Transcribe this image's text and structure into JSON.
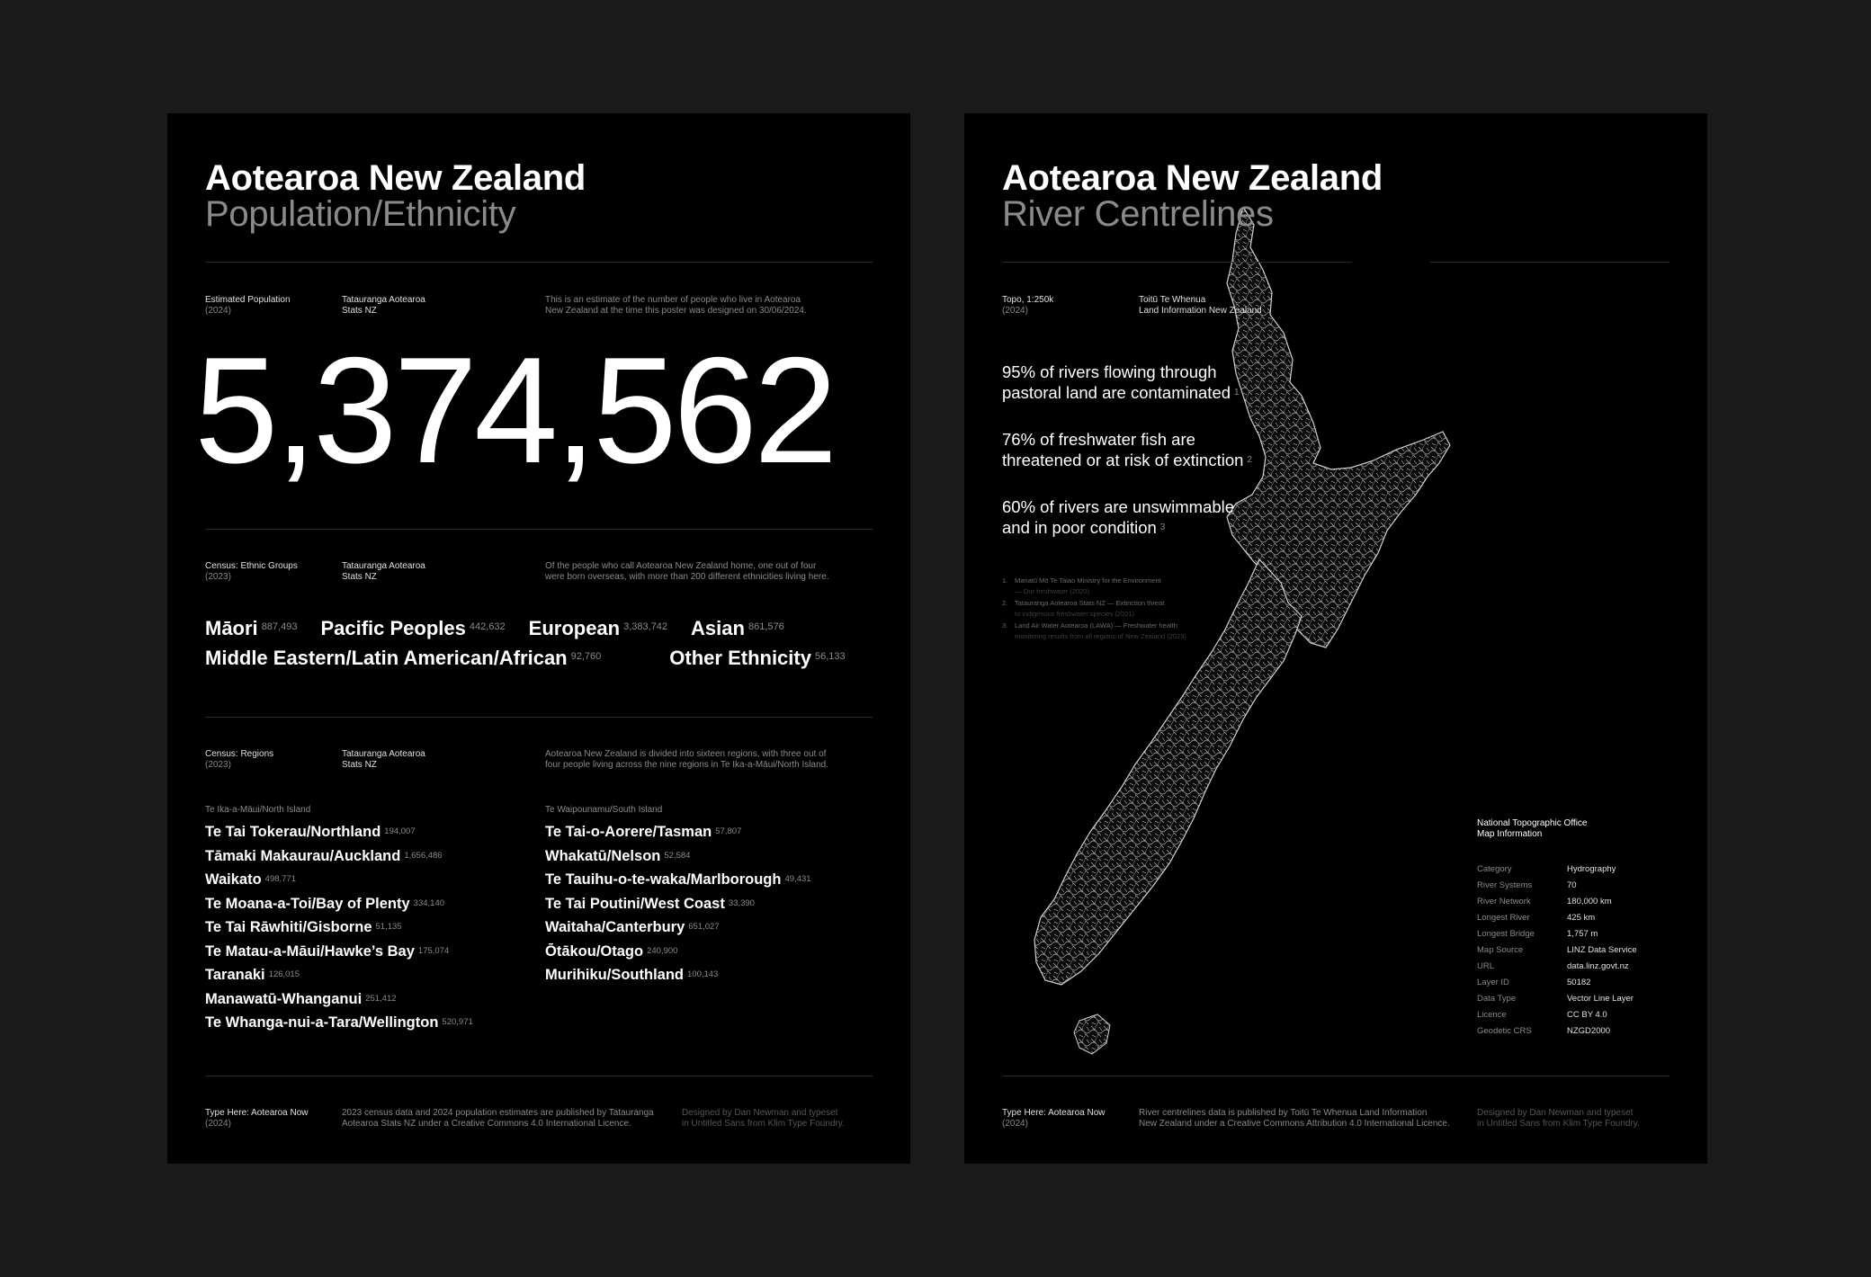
{
  "left": {
    "title": "Aotearoa New Zealand",
    "subtitle": "Population/Ethnicity",
    "population": {
      "label": "Estimated Population",
      "year": "(2024)",
      "source_1": "Tatauranga Aotearoa",
      "source_2": "Stats NZ",
      "note_1": "This is an estimate of the number of people who live in Aotearoa",
      "note_2": "New Zealand at the time this poster was designed on 30/06/2024.",
      "value": "5,374,562"
    },
    "ethnic": {
      "label": "Census: Ethnic Groups",
      "year": "(2023)",
      "source_1": "Tatauranga Aotearoa",
      "source_2": "Stats NZ",
      "note_1": "Of the people who call Aotearoa New Zealand home, one out of four",
      "note_2": "were born overseas, with more than 200 different ethnicities living here.",
      "line1": [
        {
          "name": "Māori",
          "count": "887,493"
        },
        {
          "name": "Pacific Peoples",
          "count": "442,632"
        },
        {
          "name": "European",
          "count": "3,383,742"
        },
        {
          "name": "Asian",
          "count": "861,576"
        }
      ],
      "line2": [
        {
          "name": "Middle Eastern/Latin American/African",
          "count": "92,760"
        },
        {
          "name": "Other Ethnicity",
          "count": "56,133"
        }
      ]
    },
    "regions": {
      "label": "Census: Regions",
      "year": "(2023)",
      "source_1": "Tatauranga Aotearoa",
      "source_2": "Stats NZ",
      "note_1": "Aotearoa New Zealand is divided into sixteen regions, with three out of",
      "note_2": "four people living across the nine regions in Te Ika-a-Māui/North Island.",
      "north_head": "Te Ika-a-Māui/North Island",
      "south_head": "Te Waipounamu/South Island",
      "north": [
        {
          "name": "Te Tai Tokerau/Northland",
          "count": "194,007"
        },
        {
          "name": "Tāmaki Makaurau/Auckland",
          "count": "1,656,486"
        },
        {
          "name": "Waikato",
          "count": "498,771"
        },
        {
          "name": "Te Moana-a-Toi/Bay of Plenty",
          "count": "334,140"
        },
        {
          "name": "Te Tai Rāwhiti/Gisborne",
          "count": "51,135"
        },
        {
          "name": "Te Matau-a-Māui/Hawke’s Bay",
          "count": "175,074"
        },
        {
          "name": "Taranaki",
          "count": "126,015"
        },
        {
          "name": "Manawatū-Whanganui",
          "count": "251,412"
        },
        {
          "name": "Te Whanga-nui-a-Tara/Wellington",
          "count": "520,971"
        }
      ],
      "south": [
        {
          "name": "Te Tai-o-Aorere/Tasman",
          "count": "57,807"
        },
        {
          "name": "Whakatū/Nelson",
          "count": "52,584"
        },
        {
          "name": "Te Tauihu-o-te-waka/Marlborough",
          "count": "49,431"
        },
        {
          "name": "Te Tai Poutini/West Coast",
          "count": "33,390"
        },
        {
          "name": "Waitaha/Canterbury",
          "count": "651,027"
        },
        {
          "name": "Ōtākou/Otago",
          "count": "240,900"
        },
        {
          "name": "Murihiku/Southland",
          "count": "100,143"
        }
      ]
    },
    "footer": {
      "label": "Type Here: Aotearoa Now",
      "year": "(2024)",
      "note_1": "2023 census data and 2024 population estimates are published by Tatauranga",
      "note_2": "Aotearoa Stats NZ under a Creative Commons 4.0 International Licence.",
      "credit_1": "Designed by Dan Newman and typeset",
      "credit_2": "in Untitled Sans from Klim Type Foundry."
    }
  },
  "right": {
    "title": "Aotearoa New Zealand",
    "subtitle": "River Centrelines",
    "topo": {
      "label": "Topo, 1:250k",
      "year": "(2024)",
      "source_1": "Toitū Te Whenua",
      "source_2": "Land Information New Zealand"
    },
    "stats": [
      {
        "line1": "95% of rivers flowing through",
        "line2": "pastoral land are contaminated",
        "ref": "1"
      },
      {
        "line1": "76% of freshwater fish are",
        "line2": "threatened or at risk of extinction",
        "ref": "2"
      },
      {
        "line1": "60% of rivers are unswimmable",
        "line2": "and in poor condition",
        "ref": "3"
      }
    ],
    "footnotes": [
      {
        "num": "1.",
        "line1": "Manatū Mō Te Taiao Ministry for the Environment",
        "line2": "— Our freshwater (2020)"
      },
      {
        "num": "2.",
        "line1": "Tatauranga Aotearoa Stats NZ — Extinction threat",
        "line2": "to indigenous freshwater species (2021)"
      },
      {
        "num": "3.",
        "line1": "Land Air Water Aotearoa (LAWA) — Freshwater health",
        "line2": "monitoring results from all regions of New Zealand (2023)"
      }
    ],
    "info": {
      "title_1": "National Topographic Office",
      "title_2": "Map Information",
      "rows": [
        {
          "k": "Category",
          "v": "Hydrography"
        },
        {
          "k": "River Systems",
          "v": "70"
        },
        {
          "k": "River Network",
          "v": "180,000 km"
        },
        {
          "k": "Longest River",
          "v": "425 km"
        },
        {
          "k": "Longest Bridge",
          "v": "1,757 m"
        },
        {
          "k": "Map Source",
          "v": "LINZ Data Service"
        },
        {
          "k": "URL",
          "v": "data.linz.govt.nz"
        },
        {
          "k": "Layer ID",
          "v": "50182"
        },
        {
          "k": "Data Type",
          "v": "Vector Line Layer"
        },
        {
          "k": "Licence",
          "v": "CC BY 4.0"
        },
        {
          "k": "Geodetic CRS",
          "v": "NZGD2000"
        }
      ]
    },
    "footer": {
      "label": "Type Here: Aotearoa Now",
      "year": "(2024)",
      "note_1": "River centrelines data is published by Toitū Te Whenua Land Information",
      "note_2": "New Zealand under a Creative Commons Attribution 4.0 International Licence.",
      "credit_1": "Designed by Dan Newman and typeset",
      "credit_2": "in Untitled Sans from Klim Type Foundry."
    }
  }
}
